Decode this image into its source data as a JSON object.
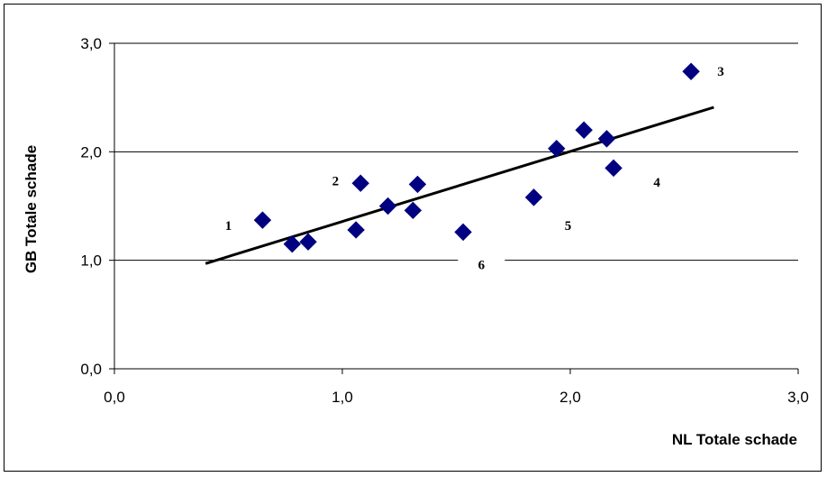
{
  "chart_data": {
    "type": "scatter",
    "title": "",
    "xlabel": "NL Totale schade",
    "ylabel": "GB Totale schade",
    "xlim": [
      0,
      3
    ],
    "ylim": [
      0,
      3
    ],
    "x_ticks": [
      "0,0",
      "1,0",
      "2,0",
      "3,0"
    ],
    "y_ticks": [
      "0,0",
      "1,0",
      "2,0",
      "3,0"
    ],
    "grid": "horizontal",
    "legend": "none",
    "marker_color": "#000080",
    "trendline_color": "#000000",
    "points": [
      {
        "x": 0.65,
        "y": 1.37
      },
      {
        "x": 0.78,
        "y": 1.15
      },
      {
        "x": 0.85,
        "y": 1.17
      },
      {
        "x": 1.06,
        "y": 1.28
      },
      {
        "x": 1.08,
        "y": 1.71
      },
      {
        "x": 1.2,
        "y": 1.5
      },
      {
        "x": 1.31,
        "y": 1.46
      },
      {
        "x": 1.33,
        "y": 1.7
      },
      {
        "x": 1.53,
        "y": 1.26
      },
      {
        "x": 1.84,
        "y": 1.58
      },
      {
        "x": 1.94,
        "y": 2.03
      },
      {
        "x": 2.06,
        "y": 2.2
      },
      {
        "x": 2.16,
        "y": 2.12
      },
      {
        "x": 2.19,
        "y": 1.85
      },
      {
        "x": 2.53,
        "y": 2.74
      }
    ],
    "trendline": {
      "x": [
        0.4,
        2.63
      ],
      "y": [
        0.97,
        2.41
      ]
    },
    "annotations": [
      {
        "text": "1",
        "x": 0.5,
        "y": 1.28
      },
      {
        "text": "2",
        "x": 0.97,
        "y": 1.69
      },
      {
        "text": "3",
        "x": 2.66,
        "y": 2.7
      },
      {
        "text": "4",
        "x": 2.38,
        "y": 1.68
      },
      {
        "text": "5",
        "x": 1.99,
        "y": 1.28
      },
      {
        "text": "6",
        "x": 1.61,
        "y": 0.92
      }
    ]
  }
}
